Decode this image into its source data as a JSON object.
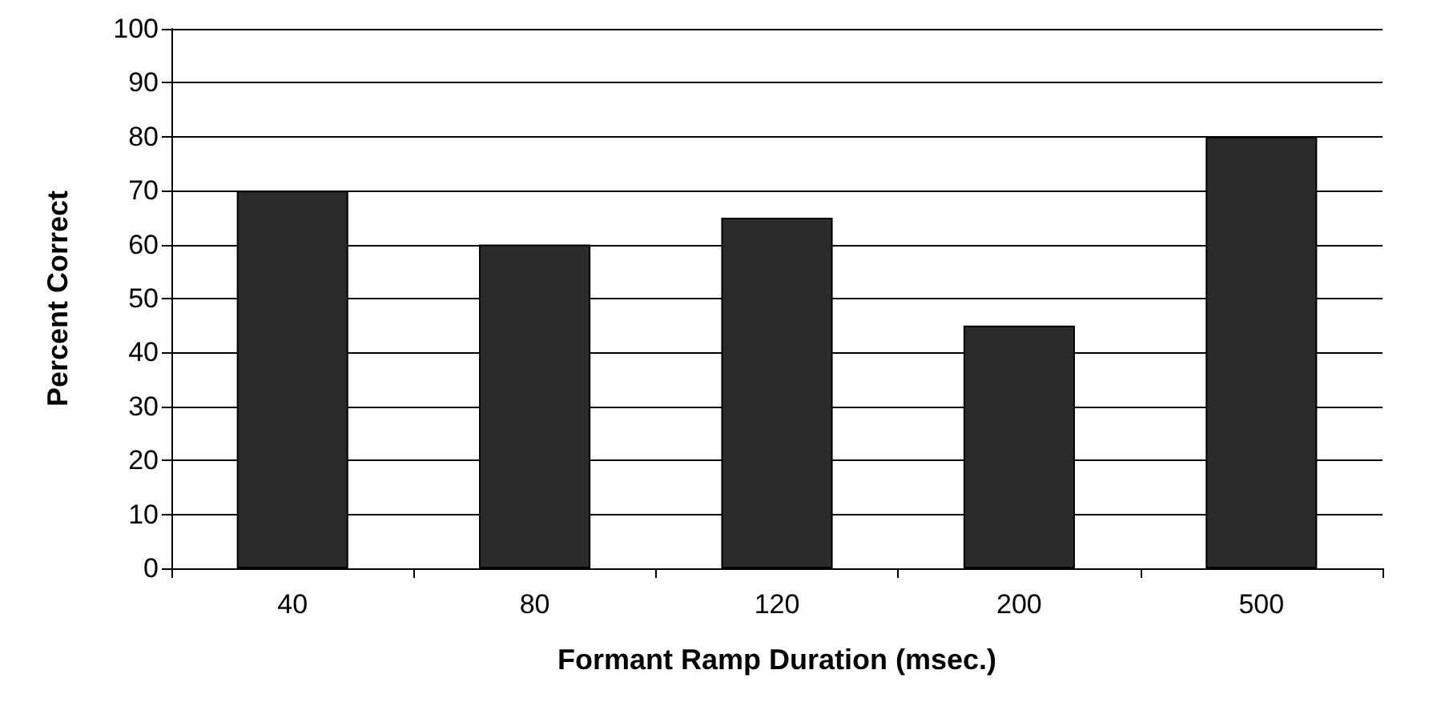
{
  "chart_data": {
    "type": "bar",
    "xlabel": "Formant Ramp Duration (msec.)",
    "ylabel": "Percent Correct",
    "categories": [
      "40",
      "80",
      "120",
      "200",
      "500"
    ],
    "values": [
      70,
      60,
      65,
      45,
      80
    ],
    "color": "#2b2b2b",
    "ylim": [
      0,
      100
    ],
    "yticks": [
      0,
      10,
      20,
      30,
      40,
      50,
      60,
      70,
      80,
      90,
      100
    ],
    "grid": "y"
  }
}
